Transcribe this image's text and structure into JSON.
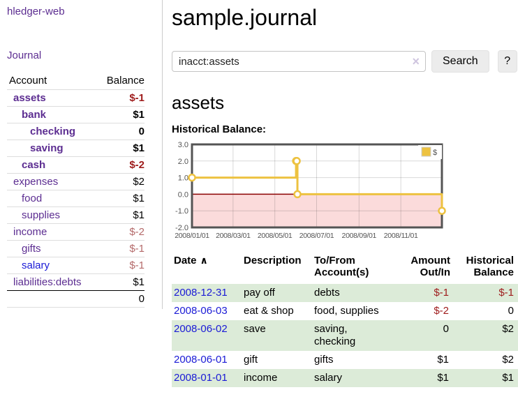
{
  "colors": {
    "accent_purple": "#5c2d91",
    "link_blue": "#1a1ad6",
    "negative_red": "#9e1b1b",
    "negative_soft": "#b46a6a",
    "row_green": "#dcebd8"
  },
  "sidebar": {
    "app_title": "hledger-web",
    "journal_link": "Journal",
    "accounts_table": {
      "headers": {
        "account": "Account",
        "balance": "Balance"
      },
      "rows": [
        {
          "name": "assets",
          "balance": "$-1",
          "depth": 1,
          "bold": true,
          "neg": true
        },
        {
          "name": "bank",
          "balance": "$1",
          "depth": 2,
          "bold": true
        },
        {
          "name": "checking",
          "balance": "0",
          "depth": 3,
          "bold": true
        },
        {
          "name": "saving",
          "balance": "$1",
          "depth": 3,
          "bold": true
        },
        {
          "name": "cash",
          "balance": "$-2",
          "depth": 2,
          "bold": true,
          "neg": true
        },
        {
          "name": "expenses",
          "balance": "$2",
          "depth": 1
        },
        {
          "name": "food",
          "balance": "$1",
          "depth": 2
        },
        {
          "name": "supplies",
          "balance": "$1",
          "depth": 2
        },
        {
          "name": "income",
          "balance": "$-2",
          "depth": 1,
          "neg_soft": true
        },
        {
          "name": "gifts",
          "balance": "$-1",
          "depth": 2,
          "neg_soft": true
        },
        {
          "name": "salary",
          "balance": "$-1",
          "depth": 2,
          "neg_soft": true,
          "blue": true,
          "last": false
        },
        {
          "name": "liabilities:debts",
          "balance": "$1",
          "depth": 1,
          "last": true
        }
      ],
      "total": "0"
    }
  },
  "header": {
    "title": "sample.journal"
  },
  "search": {
    "value": "inacct:assets",
    "clear_icon": "×",
    "search_button": "Search",
    "help_button": "?"
  },
  "account_page": {
    "heading": "assets",
    "chart_label": "Historical Balance:"
  },
  "chart_data": {
    "type": "line",
    "step": true,
    "title": "Historical Balance",
    "xlim": [
      0,
      365
    ],
    "ylim": [
      -2,
      3
    ],
    "grid": true,
    "grid_color": "rgba(0,0,0,0.15)",
    "border_color": "#545454",
    "legend_position": "top-right",
    "negative_region": {
      "from": -2,
      "to": 0,
      "fill": "#fbdbdb",
      "line": "#8b0000"
    },
    "y_ticks": [
      {
        "value": 3,
        "label": "3.0"
      },
      {
        "value": 2,
        "label": "2.0"
      },
      {
        "value": 1,
        "label": "1.0"
      },
      {
        "value": 0,
        "label": "0.0"
      },
      {
        "value": -1,
        "label": "-1.0"
      },
      {
        "value": -2,
        "label": "-2.0"
      }
    ],
    "x_ticks": [
      {
        "pos": 0,
        "label": "2008/01/01"
      },
      {
        "pos": 60,
        "label": "2008/03/01"
      },
      {
        "pos": 121,
        "label": "2008/05/01"
      },
      {
        "pos": 182,
        "label": "2008/07/01"
      },
      {
        "pos": 244,
        "label": "2008/09/01"
      },
      {
        "pos": 305,
        "label": "2008/11/01"
      }
    ],
    "series": [
      {
        "name": "$",
        "color": "#edc240",
        "points": [
          {
            "date": "2008-01-01",
            "x": 0,
            "y": 1
          },
          {
            "date": "2008-06-01",
            "x": 152,
            "y": 2
          },
          {
            "date": "2008-06-02",
            "x": 153,
            "y": 2
          },
          {
            "date": "2008-06-03",
            "x": 154,
            "y": 0
          },
          {
            "date": "2008-12-31",
            "x": 365,
            "y": -1
          }
        ]
      }
    ]
  },
  "register_table": {
    "headers": {
      "date": "Date",
      "sort_icon": "∧",
      "description": "Description",
      "account": "To/From Account(s)",
      "amount": "Amount Out/In",
      "balance": "Historical Balance"
    },
    "rows": [
      {
        "date": "2008-12-31",
        "description": "pay off",
        "account": "debts",
        "amount": "$-1",
        "balance": "$-1",
        "amount_neg": true,
        "balance_neg": true,
        "shaded": true
      },
      {
        "date": "2008-06-03",
        "description": "eat & shop",
        "account": "food, supplies",
        "amount": "$-2",
        "balance": "0",
        "amount_neg": true,
        "shaded": false
      },
      {
        "date": "2008-06-02",
        "description": "save",
        "account": "saving, checking",
        "amount": "0",
        "balance": "$2",
        "shaded": true
      },
      {
        "date": "2008-06-01",
        "description": "gift",
        "account": "gifts",
        "amount": "$1",
        "balance": "$2",
        "shaded": false
      },
      {
        "date": "2008-01-01",
        "description": "income",
        "account": "salary",
        "amount": "$1",
        "balance": "$1",
        "shaded": true
      }
    ]
  }
}
